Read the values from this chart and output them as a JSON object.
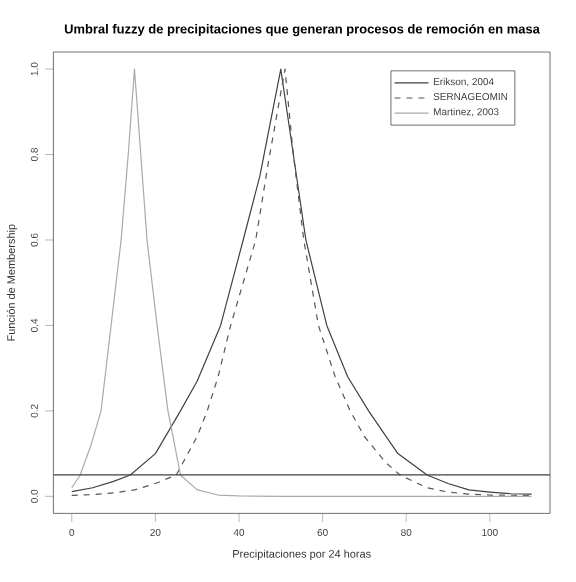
{
  "chart_data": {
    "type": "line",
    "title": "Umbral fuzzy de precipitaciones que generan procesos de remoción en masa",
    "xlabel": "Precipitaciones por 24 horas",
    "ylabel": "Función de Membership",
    "xlim": [
      -4.4,
      114.4
    ],
    "ylim": [
      -0.04,
      1.04
    ],
    "xticks": [
      0,
      20,
      40,
      60,
      80,
      100
    ],
    "yticks": [
      {
        "value": 0,
        "label": "0.0"
      },
      0.2,
      0.4,
      0.6,
      0.8,
      {
        "value": 1,
        "label": "1.0"
      }
    ],
    "legend": "top right",
    "marker": "none",
    "grid": false,
    "series": [
      {
        "name": "Erikson, 2004",
        "color": "#404040",
        "line_style": "solid",
        "x": [
          0,
          5,
          10,
          14,
          20,
          26,
          30,
          35.6,
          41,
          45,
          50,
          53,
          56,
          61,
          66,
          71,
          78,
          85,
          90,
          95,
          100,
          105,
          110
        ],
        "values": [
          0.011,
          0.02,
          0.035,
          0.05,
          0.1,
          0.2,
          0.27,
          0.4,
          0.6,
          0.75,
          1.0,
          0.8,
          0.6,
          0.4,
          0.28,
          0.2,
          0.1,
          0.05,
          0.03,
          0.015,
          0.01,
          0.006,
          0.005
        ]
      },
      {
        "name": "SERNAGEOMIN",
        "color": "#555555",
        "line_style": "dashed",
        "x": [
          0,
          5,
          10,
          15,
          20,
          25,
          30,
          32.4,
          35,
          38,
          41,
          44,
          47,
          51,
          53,
          55.5,
          59,
          63,
          66.6,
          70,
          75,
          78.5,
          85,
          90,
          95,
          100,
          110
        ],
        "values": [
          0.002,
          0.004,
          0.008,
          0.015,
          0.03,
          0.05,
          0.14,
          0.2,
          0.28,
          0.4,
          0.5,
          0.6,
          0.78,
          1.0,
          0.8,
          0.6,
          0.4,
          0.28,
          0.2,
          0.14,
          0.08,
          0.05,
          0.02,
          0.01,
          0.005,
          0.003,
          0.002
        ]
      },
      {
        "name": "Martinez, 2003",
        "color": "#aaaaaa",
        "line_style": "solid",
        "x": [
          0,
          2,
          4.6,
          7,
          9.4,
          11.8,
          13.5,
          15,
          16.5,
          18,
          20.4,
          23,
          26,
          30,
          35,
          40,
          50,
          60,
          80,
          110
        ],
        "values": [
          0.02,
          0.05,
          0.12,
          0.2,
          0.4,
          0.6,
          0.8,
          1.0,
          0.8,
          0.6,
          0.4,
          0.2,
          0.05,
          0.015,
          0.003,
          0.001,
          0,
          0,
          0,
          0
        ]
      }
    ],
    "ref_lines": [
      {
        "axis": "y",
        "value": 0.05,
        "color": "#404040"
      }
    ]
  }
}
